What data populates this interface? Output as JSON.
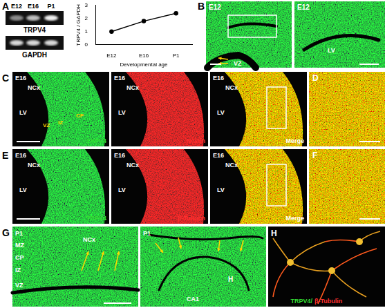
{
  "panels": {
    "A": {
      "label": "A",
      "lanes": [
        "E12",
        "E16",
        "P1"
      ],
      "blots": [
        "TRPV4",
        "GAPDH"
      ]
    },
    "B": {
      "label": "B",
      "images": [
        {
          "title": "E12",
          "labels": [
            "VZ"
          ]
        },
        {
          "title": "E12",
          "labels": [
            "LV"
          ]
        }
      ]
    },
    "C": {
      "label": "C",
      "stage": "E16",
      "region": "NCx",
      "ventricle": "LV",
      "zones": [
        "VZ",
        "IZ",
        "CP"
      ],
      "channels": [
        "TRPV4",
        "Nestin",
        "Merge"
      ]
    },
    "D": {
      "label": "D"
    },
    "E": {
      "label": "E",
      "stage": "E16",
      "region": "NCx",
      "ventricle": "LV",
      "channels": [
        "TRPV4",
        "β-Tubulin",
        "Merge"
      ]
    },
    "F": {
      "label": "F"
    },
    "G": {
      "label": "G",
      "images": [
        {
          "title": "P1",
          "labels": [
            "MZ",
            "CP",
            "IZ",
            "VZ",
            "NCx"
          ]
        },
        {
          "title": "P1",
          "labels": [
            "CA1",
            "H"
          ]
        }
      ]
    },
    "H": {
      "label": "H",
      "stain1": "TRPV4/",
      "stain2": "β-Tubulin"
    }
  },
  "chart_data": {
    "type": "line",
    "categories": [
      "E12",
      "E16",
      "P1"
    ],
    "values": [
      1,
      1.8,
      2.4
    ],
    "ylim": [
      0,
      3
    ],
    "yticks": [
      0,
      1,
      2,
      3
    ],
    "y_label": "TRPV4 / GAPDH",
    "x_label": "Developmental age",
    "color": "#000000",
    "marker": "circle",
    "grid": false
  }
}
